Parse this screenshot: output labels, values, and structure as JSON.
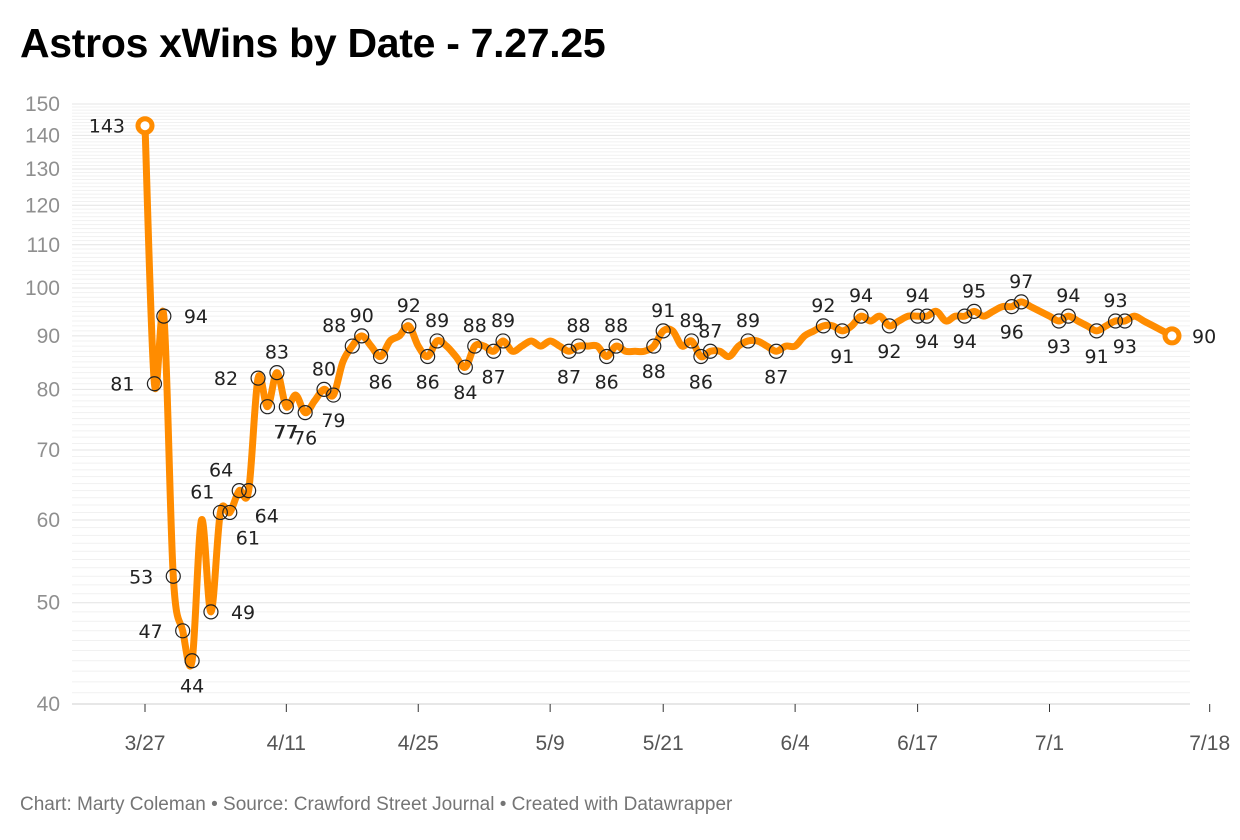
{
  "footer": {
    "text": "Chart: Marty Coleman • Source: Crawford Street Journal • Created with Datawrapper"
  },
  "colors": {
    "line": "#ff8c00",
    "marker_stroke": "#222222",
    "grid": "#e4e4e4",
    "tick_text": "#8f8f8f"
  },
  "chart_data": {
    "type": "line",
    "title": "Astros xWins by Date - 7.27.25",
    "xlabel": "",
    "ylabel": "",
    "yscale": "log",
    "ylim": [
      40,
      150
    ],
    "yticks": [
      40,
      50,
      60,
      70,
      80,
      90,
      100,
      110,
      120,
      130,
      140,
      150
    ],
    "xticks": [
      {
        "label": "3/27",
        "date": "2025-03-27"
      },
      {
        "label": "4/11",
        "date": "2025-04-11"
      },
      {
        "label": "4/25",
        "date": "2025-04-25"
      },
      {
        "label": "5/9",
        "date": "2025-05-09"
      },
      {
        "label": "5/21",
        "date": "2025-05-21"
      },
      {
        "label": "6/4",
        "date": "2025-06-04"
      },
      {
        "label": "6/17",
        "date": "2025-06-17"
      },
      {
        "label": "7/1",
        "date": "2025-07-01"
      },
      {
        "label": "7/18",
        "date": "2025-07-18"
      }
    ],
    "grid": true,
    "legend": "none",
    "series": [
      {
        "points": [
          {
            "date": "2025-03-27",
            "value": 143
          },
          {
            "date": "2025-03-28",
            "value": 81
          },
          {
            "date": "2025-03-29",
            "value": 94
          },
          {
            "date": "2025-03-30",
            "value": 53
          },
          {
            "date": "2025-03-31",
            "value": 47
          },
          {
            "date": "2025-04-01",
            "value": 44
          },
          {
            "date": "2025-04-02",
            "value": 60
          },
          {
            "date": "2025-04-03",
            "value": 49
          },
          {
            "date": "2025-04-04",
            "value": 61
          },
          {
            "date": "2025-04-05",
            "value": 61
          },
          {
            "date": "2025-04-06",
            "value": 64
          },
          {
            "date": "2025-04-07",
            "value": 64
          },
          {
            "date": "2025-04-08",
            "value": 82
          },
          {
            "date": "2025-04-09",
            "value": 77
          },
          {
            "date": "2025-04-10",
            "value": 83
          },
          {
            "date": "2025-04-11",
            "value": 77
          },
          {
            "date": "2025-04-12",
            "value": 79
          },
          {
            "date": "2025-04-13",
            "value": 76
          },
          {
            "date": "2025-04-14",
            "value": 78
          },
          {
            "date": "2025-04-15",
            "value": 80
          },
          {
            "date": "2025-04-16",
            "value": 79
          },
          {
            "date": "2025-04-17",
            "value": 85
          },
          {
            "date": "2025-04-18",
            "value": 88
          },
          {
            "date": "2025-04-19",
            "value": 90
          },
          {
            "date": "2025-04-20",
            "value": 88
          },
          {
            "date": "2025-04-21",
            "value": 86
          },
          {
            "date": "2025-04-22",
            "value": 89
          },
          {
            "date": "2025-04-23",
            "value": 90
          },
          {
            "date": "2025-04-24",
            "value": 92
          },
          {
            "date": "2025-04-25",
            "value": 88
          },
          {
            "date": "2025-04-26",
            "value": 86
          },
          {
            "date": "2025-04-27",
            "value": 89
          },
          {
            "date": "2025-04-28",
            "value": 88
          },
          {
            "date": "2025-04-29",
            "value": 86
          },
          {
            "date": "2025-04-30",
            "value": 84
          },
          {
            "date": "2025-05-01",
            "value": 88
          },
          {
            "date": "2025-05-02",
            "value": 88
          },
          {
            "date": "2025-05-03",
            "value": 87
          },
          {
            "date": "2025-05-04",
            "value": 89
          },
          {
            "date": "2025-05-05",
            "value": 87
          },
          {
            "date": "2025-05-06",
            "value": 88
          },
          {
            "date": "2025-05-07",
            "value": 89
          },
          {
            "date": "2025-05-08",
            "value": 88
          },
          {
            "date": "2025-05-09",
            "value": 89
          },
          {
            "date": "2025-05-10",
            "value": 88
          },
          {
            "date": "2025-05-11",
            "value": 87
          },
          {
            "date": "2025-05-12",
            "value": 88
          },
          {
            "date": "2025-05-13",
            "value": 88
          },
          {
            "date": "2025-05-14",
            "value": 88
          },
          {
            "date": "2025-05-15",
            "value": 86
          },
          {
            "date": "2025-05-16",
            "value": 88
          },
          {
            "date": "2025-05-17",
            "value": 87
          },
          {
            "date": "2025-05-18",
            "value": 87
          },
          {
            "date": "2025-05-19",
            "value": 87
          },
          {
            "date": "2025-05-20",
            "value": 88
          },
          {
            "date": "2025-05-21",
            "value": 91
          },
          {
            "date": "2025-05-22",
            "value": 91
          },
          {
            "date": "2025-05-23",
            "value": 88
          },
          {
            "date": "2025-05-24",
            "value": 89
          },
          {
            "date": "2025-05-25",
            "value": 86
          },
          {
            "date": "2025-05-26",
            "value": 87
          },
          {
            "date": "2025-05-27",
            "value": 87
          },
          {
            "date": "2025-05-28",
            "value": 86
          },
          {
            "date": "2025-05-29",
            "value": 88
          },
          {
            "date": "2025-05-30",
            "value": 89
          },
          {
            "date": "2025-05-31",
            "value": 89
          },
          {
            "date": "2025-06-01",
            "value": 88
          },
          {
            "date": "2025-06-02",
            "value": 87
          },
          {
            "date": "2025-06-03",
            "value": 88
          },
          {
            "date": "2025-06-04",
            "value": 88
          },
          {
            "date": "2025-06-05",
            "value": 90
          },
          {
            "date": "2025-06-06",
            "value": 91
          },
          {
            "date": "2025-06-07",
            "value": 92
          },
          {
            "date": "2025-06-08",
            "value": 92
          },
          {
            "date": "2025-06-09",
            "value": 91
          },
          {
            "date": "2025-06-10",
            "value": 92
          },
          {
            "date": "2025-06-11",
            "value": 94
          },
          {
            "date": "2025-06-12",
            "value": 93
          },
          {
            "date": "2025-06-13",
            "value": 94
          },
          {
            "date": "2025-06-14",
            "value": 92
          },
          {
            "date": "2025-06-15",
            "value": 93
          },
          {
            "date": "2025-06-16",
            "value": 94
          },
          {
            "date": "2025-06-17",
            "value": 94
          },
          {
            "date": "2025-06-18",
            "value": 94
          },
          {
            "date": "2025-06-19",
            "value": 95
          },
          {
            "date": "2025-06-20",
            "value": 93
          },
          {
            "date": "2025-06-21",
            "value": 94
          },
          {
            "date": "2025-06-22",
            "value": 94
          },
          {
            "date": "2025-06-23",
            "value": 95
          },
          {
            "date": "2025-06-24",
            "value": 94
          },
          {
            "date": "2025-06-25",
            "value": 95
          },
          {
            "date": "2025-06-26",
            "value": 96
          },
          {
            "date": "2025-06-27",
            "value": 96
          },
          {
            "date": "2025-06-28",
            "value": 97
          },
          {
            "date": "2025-06-29",
            "value": 96
          },
          {
            "date": "2025-06-30",
            "value": 95
          },
          {
            "date": "2025-07-01",
            "value": 94
          },
          {
            "date": "2025-07-02",
            "value": 93
          },
          {
            "date": "2025-07-03",
            "value": 94
          },
          {
            "date": "2025-07-04",
            "value": 93
          },
          {
            "date": "2025-07-05",
            "value": 92
          },
          {
            "date": "2025-07-06",
            "value": 91
          },
          {
            "date": "2025-07-07",
            "value": 92
          },
          {
            "date": "2025-07-08",
            "value": 93
          },
          {
            "date": "2025-07-09",
            "value": 93
          },
          {
            "date": "2025-07-10",
            "value": 94
          },
          {
            "date": "2025-07-11",
            "value": 93
          },
          {
            "date": "2025-07-12",
            "value": 92
          },
          {
            "date": "2025-07-13",
            "value": 91
          },
          {
            "date": "2025-07-14",
            "value": 90
          }
        ],
        "labeled_points": [
          {
            "date": "2025-03-27",
            "value": 143,
            "label": "143",
            "label_pos": "left"
          },
          {
            "date": "2025-03-28",
            "value": 81,
            "label": "81",
            "label_pos": "left"
          },
          {
            "date": "2025-03-29",
            "value": 94,
            "label": "94",
            "label_pos": "right"
          },
          {
            "date": "2025-03-30",
            "value": 53,
            "label": "53",
            "label_pos": "left"
          },
          {
            "date": "2025-03-31",
            "value": 47,
            "label": "47",
            "label_pos": "left"
          },
          {
            "date": "2025-04-01",
            "value": 44,
            "label": "44",
            "label_pos": "below"
          },
          {
            "date": "2025-04-03",
            "value": 49,
            "label": "49",
            "label_pos": "right"
          },
          {
            "date": "2025-04-04",
            "value": 61,
            "label": "61",
            "label_pos": "above-left"
          },
          {
            "date": "2025-04-05",
            "value": 61,
            "label": "61",
            "label_pos": "below-right"
          },
          {
            "date": "2025-04-06",
            "value": 64,
            "label": "64",
            "label_pos": "above-left"
          },
          {
            "date": "2025-04-07",
            "value": 64,
            "label": "64",
            "label_pos": "below-right"
          },
          {
            "date": "2025-04-08",
            "value": 82,
            "label": "82",
            "label_pos": "left"
          },
          {
            "date": "2025-04-09",
            "value": 77,
            "label": "77",
            "label_pos": "below-right"
          },
          {
            "date": "2025-04-10",
            "value": 83,
            "label": "83",
            "label_pos": "above"
          },
          {
            "date": "2025-04-11",
            "value": 77,
            "label": "77",
            "label_pos": "below"
          },
          {
            "date": "2025-04-13",
            "value": 76,
            "label": "76",
            "label_pos": "below"
          },
          {
            "date": "2025-04-15",
            "value": 80,
            "label": "80",
            "label_pos": "above"
          },
          {
            "date": "2025-04-16",
            "value": 79,
            "label": "79",
            "label_pos": "below"
          },
          {
            "date": "2025-04-18",
            "value": 88,
            "label": "88",
            "label_pos": "above-left"
          },
          {
            "date": "2025-04-19",
            "value": 90,
            "label": "90",
            "label_pos": "above"
          },
          {
            "date": "2025-04-21",
            "value": 86,
            "label": "86",
            "label_pos": "below"
          },
          {
            "date": "2025-04-24",
            "value": 92,
            "label": "92",
            "label_pos": "above"
          },
          {
            "date": "2025-04-26",
            "value": 86,
            "label": "86",
            "label_pos": "below"
          },
          {
            "date": "2025-04-27",
            "value": 89,
            "label": "89",
            "label_pos": "above"
          },
          {
            "date": "2025-04-30",
            "value": 84,
            "label": "84",
            "label_pos": "below"
          },
          {
            "date": "2025-05-01",
            "value": 88,
            "label": "88",
            "label_pos": "above"
          },
          {
            "date": "2025-05-03",
            "value": 87,
            "label": "87",
            "label_pos": "below"
          },
          {
            "date": "2025-05-04",
            "value": 89,
            "label": "89",
            "label_pos": "above"
          },
          {
            "date": "2025-05-11",
            "value": 87,
            "label": "87",
            "label_pos": "below"
          },
          {
            "date": "2025-05-12",
            "value": 88,
            "label": "88",
            "label_pos": "above"
          },
          {
            "date": "2025-05-15",
            "value": 86,
            "label": "86",
            "label_pos": "below"
          },
          {
            "date": "2025-05-16",
            "value": 88,
            "label": "88",
            "label_pos": "above"
          },
          {
            "date": "2025-05-20",
            "value": 88,
            "label": "88",
            "label_pos": "below"
          },
          {
            "date": "2025-05-21",
            "value": 91,
            "label": "91",
            "label_pos": "above"
          },
          {
            "date": "2025-05-24",
            "value": 89,
            "label": "89",
            "label_pos": "above"
          },
          {
            "date": "2025-05-25",
            "value": 86,
            "label": "86",
            "label_pos": "below"
          },
          {
            "date": "2025-05-26",
            "value": 87,
            "label": "87",
            "label_pos": "above"
          },
          {
            "date": "2025-05-30",
            "value": 89,
            "label": "89",
            "label_pos": "above"
          },
          {
            "date": "2025-06-02",
            "value": 87,
            "label": "87",
            "label_pos": "below"
          },
          {
            "date": "2025-06-07",
            "value": 92,
            "label": "92",
            "label_pos": "above"
          },
          {
            "date": "2025-06-09",
            "value": 91,
            "label": "91",
            "label_pos": "below"
          },
          {
            "date": "2025-06-11",
            "value": 94,
            "label": "94",
            "label_pos": "above"
          },
          {
            "date": "2025-06-14",
            "value": 92,
            "label": "92",
            "label_pos": "below"
          },
          {
            "date": "2025-06-17",
            "value": 94,
            "label": "94",
            "label_pos": "above"
          },
          {
            "date": "2025-06-18",
            "value": 94,
            "label": "94",
            "label_pos": "below"
          },
          {
            "date": "2025-06-22",
            "value": 94,
            "label": "94",
            "label_pos": "below"
          },
          {
            "date": "2025-06-23",
            "value": 95,
            "label": "95",
            "label_pos": "above"
          },
          {
            "date": "2025-06-27",
            "value": 96,
            "label": "96",
            "label_pos": "below"
          },
          {
            "date": "2025-06-28",
            "value": 97,
            "label": "97",
            "label_pos": "above"
          },
          {
            "date": "2025-07-02",
            "value": 93,
            "label": "93",
            "label_pos": "below"
          },
          {
            "date": "2025-07-03",
            "value": 94,
            "label": "94",
            "label_pos": "above"
          },
          {
            "date": "2025-07-06",
            "value": 91,
            "label": "91",
            "label_pos": "below"
          },
          {
            "date": "2025-07-08",
            "value": 93,
            "label": "93",
            "label_pos": "above"
          },
          {
            "date": "2025-07-09",
            "value": 93,
            "label": "93",
            "label_pos": "below"
          },
          {
            "date": "2025-07-14",
            "value": 90,
            "label": "90",
            "label_pos": "right"
          }
        ]
      }
    ]
  }
}
